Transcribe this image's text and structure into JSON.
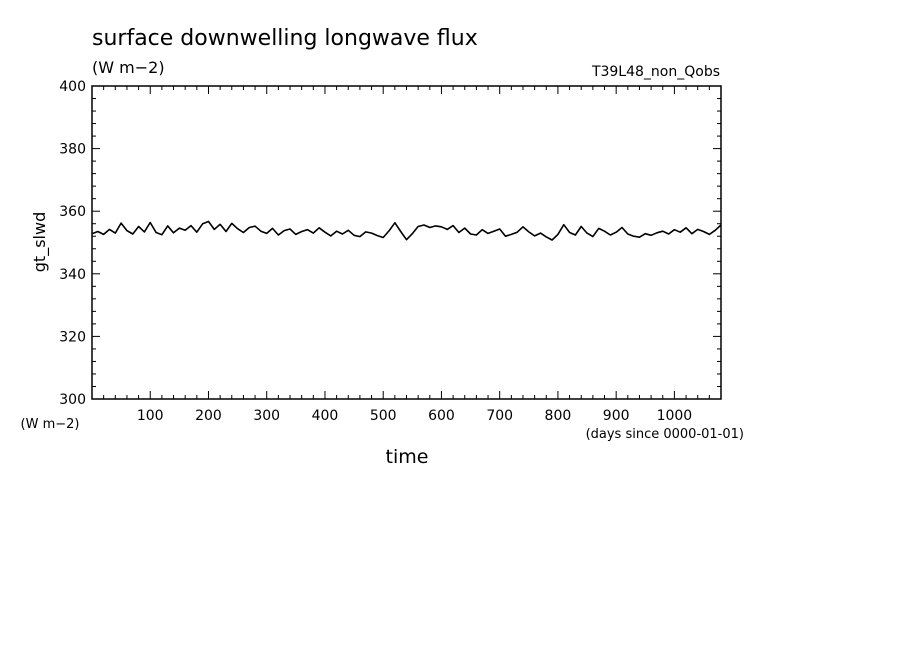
{
  "chart_data": {
    "type": "line",
    "title": "surface downwelling longwave flux",
    "subtitle": "(W m−2)",
    "run_label": "T39L48_non_Qobs",
    "xlabel": "time",
    "xunits": "(days since 0000-01-01)",
    "ylabel": "gt_slwd",
    "yunits": "(W m−2)",
    "xlim": [
      0,
      1080
    ],
    "ylim": [
      300,
      400
    ],
    "xticks": [
      100,
      200,
      300,
      400,
      500,
      600,
      700,
      800,
      900,
      1000
    ],
    "xtick_labels": [
      "100",
      "200",
      "300",
      "400",
      "500",
      "600",
      "700",
      "800",
      "900",
      "1000"
    ],
    "yticks": [
      300,
      320,
      340,
      360,
      380,
      400
    ],
    "ytick_labels": [
      "300",
      "320",
      "340",
      "360",
      "380",
      "400"
    ],
    "grid": false,
    "legend": "none",
    "line_color": "#000000",
    "series": [
      {
        "x": [
          0,
          10,
          20,
          30,
          40,
          50,
          60,
          70,
          80,
          90,
          100,
          110,
          120,
          130,
          140,
          150,
          160,
          170,
          180,
          190,
          200,
          210,
          220,
          230,
          240,
          250,
          260,
          270,
          280,
          290,
          300,
          310,
          320,
          330,
          340,
          350,
          360,
          370,
          380,
          390,
          400,
          410,
          420,
          430,
          440,
          450,
          460,
          470,
          480,
          490,
          500,
          510,
          520,
          530,
          540,
          550,
          560,
          570,
          580,
          590,
          600,
          610,
          620,
          630,
          640,
          650,
          660,
          670,
          680,
          690,
          700,
          710,
          720,
          730,
          740,
          750,
          760,
          770,
          780,
          790,
          800,
          810,
          820,
          830,
          840,
          850,
          860,
          870,
          880,
          890,
          900,
          910,
          920,
          930,
          940,
          950,
          960,
          970,
          980,
          990,
          1000,
          1010,
          1020,
          1030,
          1040,
          1050,
          1060,
          1070,
          1080
        ],
        "y": [
          352.8,
          353.5,
          352.6,
          354.2,
          353.0,
          356.2,
          353.8,
          352.7,
          355.1,
          353.4,
          356.4,
          353.2,
          352.5,
          355.3,
          353.1,
          354.6,
          353.9,
          355.4,
          353.3,
          356.0,
          356.7,
          354.2,
          355.8,
          353.5,
          356.1,
          354.4,
          353.2,
          354.8,
          355.2,
          353.6,
          352.9,
          354.5,
          352.4,
          353.8,
          354.3,
          352.6,
          353.5,
          354.1,
          353.0,
          354.7,
          353.3,
          352.1,
          353.6,
          352.7,
          353.9,
          352.3,
          351.9,
          353.4,
          353.0,
          352.2,
          351.6,
          353.7,
          356.3,
          353.5,
          350.9,
          352.8,
          355.1,
          355.6,
          354.8,
          355.3,
          355.0,
          354.2,
          355.4,
          353.2,
          354.6,
          352.7,
          352.4,
          354.1,
          352.9,
          353.6,
          354.3,
          352.0,
          352.6,
          353.3,
          355.0,
          353.4,
          352.1,
          353.0,
          351.8,
          350.8,
          352.6,
          355.7,
          353.2,
          352.4,
          355.1,
          353.0,
          351.9,
          354.5,
          353.6,
          352.4,
          353.3,
          354.8,
          352.7,
          352.0,
          351.7,
          352.8,
          352.3,
          353.1,
          353.6,
          352.7,
          354.1,
          353.3,
          354.7,
          352.8,
          354.2,
          353.5,
          352.6,
          353.9,
          355.6
        ]
      }
    ]
  }
}
